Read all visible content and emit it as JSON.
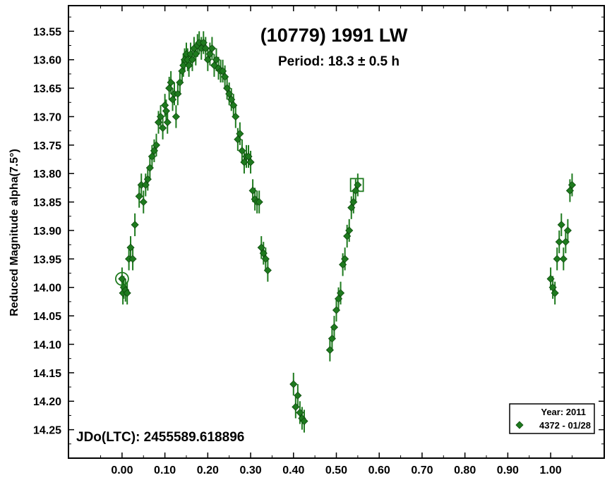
{
  "chart_data": {
    "type": "scatter",
    "title": "(10779) 1991 LW",
    "subtitle": "Period: 18.3 ± 0.5 h",
    "ylabel": "Reduced Magnitude alpha(7.5°)",
    "xlabel": "",
    "epoch_label": "JDo(LTC): 2455589.618896",
    "xlim": [
      -0.125,
      1.125
    ],
    "ylim": [
      14.3,
      13.505
    ],
    "x_ticks": [
      "0.00",
      "0.10",
      "0.20",
      "0.30",
      "0.40",
      "0.50",
      "0.60",
      "0.70",
      "0.80",
      "0.90",
      "1.00"
    ],
    "x_tick_values": [
      0.0,
      0.1,
      0.2,
      0.3,
      0.4,
      0.5,
      0.6,
      0.7,
      0.8,
      0.9,
      1.0
    ],
    "y_ticks": [
      "13.55",
      "13.60",
      "13.65",
      "13.70",
      "13.75",
      "13.80",
      "13.85",
      "13.90",
      "13.95",
      "14.00",
      "14.05",
      "14.10",
      "14.15",
      "14.20",
      "14.25"
    ],
    "y_tick_values": [
      13.55,
      13.6,
      13.65,
      13.7,
      13.75,
      13.8,
      13.85,
      13.9,
      13.95,
      14.0,
      14.05,
      14.1,
      14.15,
      14.2,
      14.25
    ],
    "legend": {
      "title": "Year: 2011",
      "placement": "bottom-right",
      "entries": [
        {
          "label": "4372 - 01/28",
          "color": "#1e7a1e"
        }
      ]
    },
    "series": [
      {
        "name": "4372 - 01/28",
        "color": "#1e7a1e",
        "marker": "diamond",
        "error": 0.02,
        "x": [
          0.0,
          0.002,
          0.004,
          0.008,
          0.012,
          0.016,
          0.02,
          0.025,
          0.03,
          0.04,
          0.045,
          0.05,
          0.055,
          0.06,
          0.065,
          0.07,
          0.075,
          0.08,
          0.085,
          0.09,
          0.095,
          0.1,
          0.103,
          0.106,
          0.11,
          0.114,
          0.118,
          0.122,
          0.126,
          0.13,
          0.135,
          0.14,
          0.143,
          0.146,
          0.15,
          0.153,
          0.156,
          0.16,
          0.164,
          0.168,
          0.172,
          0.176,
          0.18,
          0.185,
          0.19,
          0.195,
          0.2,
          0.205,
          0.21,
          0.215,
          0.22,
          0.225,
          0.23,
          0.235,
          0.24,
          0.245,
          0.25,
          0.255,
          0.26,
          0.265,
          0.27,
          0.275,
          0.28,
          0.285,
          0.29,
          0.295,
          0.3,
          0.305,
          0.31,
          0.315,
          0.32,
          0.325,
          0.33,
          0.335,
          0.34,
          0.4,
          0.405,
          0.41,
          0.415,
          0.42,
          0.425,
          0.485,
          0.49,
          0.495,
          0.5,
          0.505,
          0.51,
          0.515,
          0.52,
          0.525,
          0.53,
          0.535,
          0.54,
          0.545,
          0.55,
          1.0,
          1.005,
          1.01,
          1.015,
          1.02,
          1.025,
          1.03,
          1.035,
          1.04,
          1.045,
          1.05
        ],
        "y": [
          13.985,
          14.01,
          14.0,
          14.005,
          14.01,
          13.95,
          13.93,
          13.95,
          13.89,
          13.84,
          13.82,
          13.85,
          13.82,
          13.81,
          13.79,
          13.77,
          13.76,
          13.75,
          13.71,
          13.7,
          13.72,
          13.68,
          13.69,
          13.71,
          13.65,
          13.64,
          13.67,
          13.66,
          13.7,
          13.66,
          13.64,
          13.62,
          13.61,
          13.6,
          13.59,
          13.6,
          13.61,
          13.59,
          13.6,
          13.58,
          13.59,
          13.575,
          13.57,
          13.58,
          13.57,
          13.58,
          13.6,
          13.59,
          13.58,
          13.61,
          13.6,
          13.615,
          13.62,
          13.62,
          13.63,
          13.65,
          13.66,
          13.67,
          13.68,
          13.7,
          13.74,
          13.73,
          13.76,
          13.78,
          13.77,
          13.77,
          13.78,
          13.83,
          13.845,
          13.85,
          13.85,
          13.93,
          13.94,
          13.95,
          13.97,
          14.17,
          14.21,
          14.19,
          14.22,
          14.23,
          14.235,
          14.11,
          14.09,
          14.07,
          14.04,
          14.02,
          14.01,
          13.96,
          13.95,
          13.91,
          13.9,
          13.86,
          13.85,
          13.83,
          13.82,
          13.985,
          14.0,
          14.01,
          13.95,
          13.92,
          13.89,
          13.95,
          13.92,
          13.9,
          13.83,
          13.82
        ]
      }
    ],
    "annotations": [
      {
        "shape": "circle",
        "x": 0.0,
        "y": 13.985
      },
      {
        "shape": "square",
        "x": 0.548,
        "y": 13.82
      }
    ]
  }
}
